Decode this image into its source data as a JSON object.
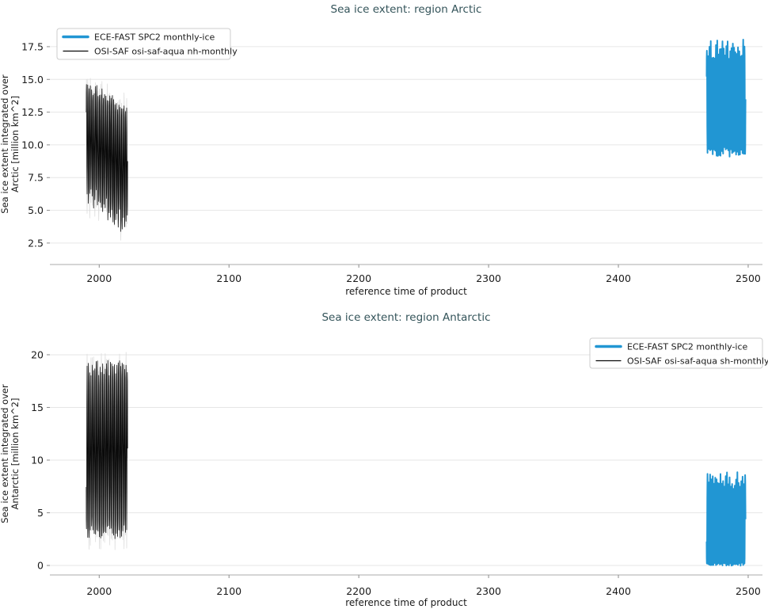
{
  "colors": {
    "title": "#34545a",
    "blue_series": "#2196d3",
    "black_series": "#0a0a0a",
    "halo": "#d9d9d9",
    "grid": "#e6e6e6",
    "spine": "#ababab",
    "tick_mark": "#8c8c8c",
    "tick_text": "#1a1a1a",
    "legend_border": "#cccccc"
  },
  "chart_data": [
    {
      "type": "line",
      "title": "Sea ice extent: region Arctic",
      "xlabel": "reference time of product",
      "ylabel_lines": [
        "Sea ice extent integrated over",
        "Arctic [million km^2]"
      ],
      "x_tick_values": [
        2000,
        2100,
        2200,
        2300,
        2400,
        2500
      ],
      "x_tick_labels": [
        "2000",
        "2100",
        "2200",
        "2300",
        "2400",
        "2500"
      ],
      "y_tick_values": [
        2.5,
        5.0,
        7.5,
        10.0,
        12.5,
        15.0,
        17.5
      ],
      "y_tick_labels": [
        "2.5",
        "5.0",
        "7.5",
        "10.0",
        "12.5",
        "15.0",
        "17.5"
      ],
      "xlim": [
        1962,
        2511
      ],
      "ylim": [
        0.86,
        19.25
      ],
      "grid": "horizontal",
      "legend": {
        "position": "upper-left",
        "entries": [
          {
            "label": "ECE-FAST SPC2 monthly-ice",
            "color": "#2196d3",
            "thick": true
          },
          {
            "label": "OSI-SAF osi-saf-aqua nh-monthly",
            "color": "#0a0a0a",
            "thick": false
          }
        ]
      },
      "series": [
        {
          "name": "OSI-SAF osi-saf-aqua nh-monthly",
          "color": "#0a0a0a",
          "lw": 0.8,
          "halo": true,
          "seed": 11,
          "x_start": 1990,
          "x_end": 2022,
          "phase": 2,
          "top_start": 14.5,
          "top_end": 12.7,
          "top_jitter": 0.45,
          "bottom_start": 6.2,
          "bottom_end": 4.0,
          "bottom_jitter": 0.85,
          "noise": 0.15,
          "summary": "monthly seasonal cycle 1990-2021, max ~14.5 declining to ~12.7, min ~6.2 declining to ~3.8 million km^2"
        },
        {
          "name": "ECE-FAST SPC2 monthly-ice",
          "color": "#2196d3",
          "lw": 2.0,
          "halo": false,
          "seed": 21,
          "x_start": 2468,
          "x_end": 2498,
          "phase": 2,
          "top_start": 17.3,
          "top_end": 17.3,
          "top_jitter": 0.75,
          "bottom_start": 9.5,
          "bottom_end": 9.5,
          "bottom_jitter": 0.35,
          "noise": 0.12,
          "summary": "monthly seasonal cycle ~2468-2497, max ~17-18.5, min ~9.3-10 million km^2"
        }
      ]
    },
    {
      "type": "line",
      "title": "Sea ice extent: region Antarctic",
      "xlabel": "reference time of product",
      "ylabel_lines": [
        "Sea ice extent integrated over",
        "Antarctic [million km^2]"
      ],
      "x_tick_values": [
        2000,
        2100,
        2200,
        2300,
        2400,
        2500
      ],
      "x_tick_labels": [
        "2000",
        "2100",
        "2200",
        "2300",
        "2400",
        "2500"
      ],
      "y_tick_values": [
        0,
        5,
        10,
        15,
        20
      ],
      "y_tick_labels": [
        "0",
        "5",
        "10",
        "15",
        "20"
      ],
      "xlim": [
        1962,
        2511
      ],
      "ylim": [
        -0.9,
        22.1
      ],
      "grid": "horizontal",
      "legend": {
        "position": "upper-right",
        "entries": [
          {
            "label": "ECE-FAST SPC2 monthly-ice",
            "color": "#2196d3",
            "thick": true
          },
          {
            "label": "OSI-SAF osi-saf-aqua sh-monthly",
            "color": "#0a0a0a",
            "thick": false
          }
        ]
      },
      "series": [
        {
          "name": "OSI-SAF osi-saf-aqua sh-monthly",
          "color": "#0a0a0a",
          "lw": 0.8,
          "halo": true,
          "seed": 31,
          "x_start": 1990,
          "x_end": 2022,
          "phase": 8,
          "top_start": 18.7,
          "top_end": 18.7,
          "top_jitter": 0.8,
          "bottom_start": 3.1,
          "bottom_end": 3.1,
          "bottom_jitter": 0.6,
          "noise": 0.15,
          "summary": "monthly seasonal cycle 1990-2021, max ~18-20, min ~2.5-3.7 million km^2"
        },
        {
          "name": "ECE-FAST SPC2 monthly-ice",
          "color": "#2196d3",
          "lw": 2.0,
          "halo": false,
          "seed": 41,
          "x_start": 2468,
          "x_end": 2498,
          "phase": 8,
          "top_start": 8.1,
          "top_end": 8.1,
          "top_jitter": 0.75,
          "bottom_start": 0.12,
          "bottom_end": 0.12,
          "bottom_jitter": 0.08,
          "noise": 0.1,
          "summary": "monthly seasonal cycle ~2468-2497, max ~7.2-9, min ~0 million km^2"
        }
      ]
    }
  ]
}
